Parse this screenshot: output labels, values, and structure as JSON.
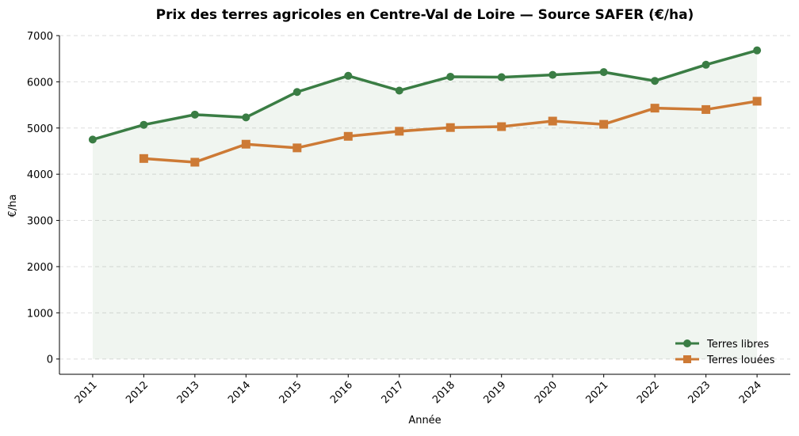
{
  "chart_data": {
    "type": "line",
    "title": "Prix des terres agricoles en Centre-Val de Loire — Source SAFER (€/ha)",
    "xlabel": "Année",
    "ylabel": "€/ha",
    "x": [
      2011,
      2012,
      2013,
      2014,
      2015,
      2016,
      2017,
      2018,
      2019,
      2020,
      2021,
      2022,
      2023,
      2024
    ],
    "ylim": [
      -330,
      7000
    ],
    "yticks": [
      0,
      1000,
      2000,
      3000,
      4000,
      5000,
      6000,
      7000
    ],
    "grid": "y dashed",
    "legend": "bottom-right",
    "series": [
      {
        "name": "Terres libres",
        "color": "#3a7d44",
        "marker": "circle",
        "filled_area": true,
        "values": [
          4750,
          5070,
          5290,
          5230,
          5780,
          6130,
          5810,
          6110,
          6100,
          6150,
          6210,
          6020,
          6370,
          6680
        ]
      },
      {
        "name": "Terres louées",
        "color": "#cd7a35",
        "marker": "square",
        "values": [
          null,
          4340,
          4260,
          4650,
          4570,
          4820,
          4930,
          5010,
          5030,
          5150,
          5080,
          5430,
          5400,
          5580
        ]
      }
    ]
  }
}
